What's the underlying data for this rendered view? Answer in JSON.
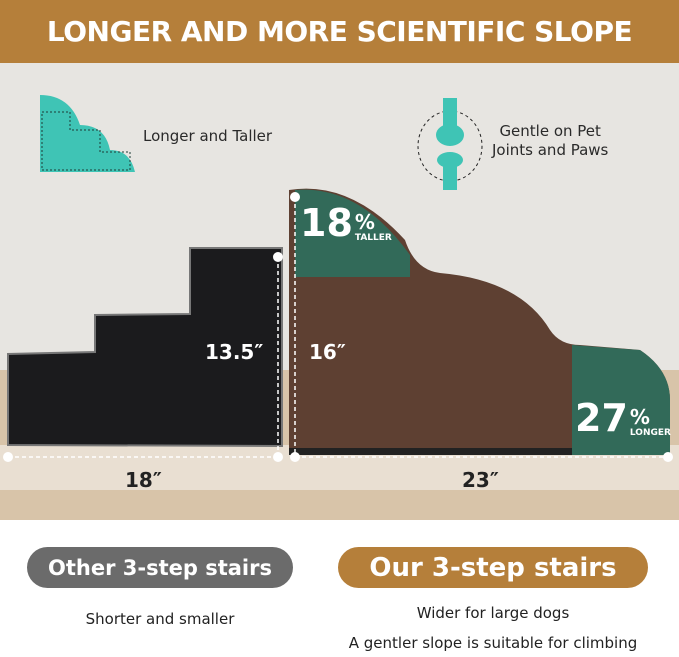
{
  "header": {
    "title": "LONGER AND MORE SCIENTIFIC SLOPE"
  },
  "features": [
    {
      "icon": "stair-outline-icon",
      "label": "Longer and Taller"
    },
    {
      "icon": "knee-joint-icon",
      "label_line1": "Gentle on Pet",
      "label_line2": "Joints and Paws"
    }
  ],
  "other_stairs": {
    "height": "13.5″",
    "length": "18″"
  },
  "our_stairs": {
    "height": "16″",
    "length": "23″",
    "taller_pct": "18",
    "taller_label": "TALLER",
    "longer_pct": "27",
    "longer_label": "LONGER",
    "percent_sign": "%"
  },
  "comparison": {
    "other": {
      "label": "Other 3-step stairs",
      "desc": "Shorter and smaller",
      "color": "#6b6b6b"
    },
    "ours": {
      "label": "Our 3-step stairs",
      "desc_line1": "Wider for large dogs",
      "desc_line2": "A gentler slope is suitable for climbing",
      "color": "#b57f3a"
    }
  },
  "colors": {
    "brand": "#b57f3a",
    "teal": "#3fc4b5",
    "highlight_green": "#2f6e5c",
    "brown": "#5e4032"
  }
}
